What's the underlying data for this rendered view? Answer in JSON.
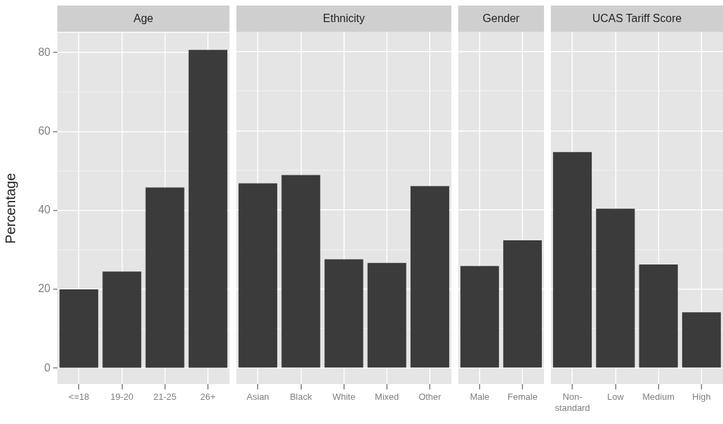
{
  "chart_data": [
    {
      "type": "bar",
      "title": "Age",
      "ylabel": "Percentage",
      "categories": [
        "<=18",
        "19-20",
        "21-25",
        "26+"
      ],
      "values": [
        20.0,
        24.5,
        45.8,
        80.7
      ],
      "color": "#3b3b3b",
      "ylim": [
        -4,
        85
      ],
      "yticks": [
        0,
        {
          "value": 10,
          "label": null
        },
        20,
        {
          "value": 30,
          "label": null
        },
        40,
        {
          "value": 50,
          "label": null
        },
        60,
        {
          "value": 70,
          "label": null
        },
        80
      ],
      "grid": true
    },
    {
      "type": "bar",
      "title": "Ethnicity",
      "categories": [
        "Asian",
        "Black",
        "White",
        "Mixed",
        "Other"
      ],
      "values": [
        46.7,
        48.8,
        27.5,
        26.6,
        46.0
      ],
      "color": "#3b3b3b",
      "ylim": [
        -4,
        85
      ],
      "yticks": [
        0,
        {
          "value": 10,
          "label": null
        },
        20,
        {
          "value": 30,
          "label": null
        },
        40,
        {
          "value": 50,
          "label": null
        },
        60,
        {
          "value": 70,
          "label": null
        },
        80
      ],
      "grid": true,
      "tick_labels": "x"
    },
    {
      "type": "bar",
      "title": "Gender",
      "categories": [
        "Male",
        "Female"
      ],
      "values": [
        25.8,
        32.3
      ],
      "color": "#3b3b3b",
      "ylim": [
        -4,
        85
      ],
      "yticks": [
        0,
        {
          "value": 10,
          "label": null
        },
        20,
        {
          "value": 30,
          "label": null
        },
        40,
        {
          "value": 50,
          "label": null
        },
        60,
        {
          "value": 70,
          "label": null
        },
        80
      ],
      "grid": true,
      "tick_labels": "x"
    },
    {
      "type": "bar",
      "title": "UCAS Tariff Score",
      "categories": [
        "Non-standard",
        "Low",
        "Medium",
        "High"
      ],
      "values": [
        54.6,
        40.3,
        26.2,
        14.1
      ],
      "color": "#3b3b3b",
      "ylim": [
        -4,
        85
      ],
      "yticks": [
        0,
        {
          "value": 10,
          "label": null
        },
        20,
        {
          "value": 30,
          "label": null
        },
        40,
        {
          "value": 50,
          "label": null
        },
        60,
        {
          "value": 70,
          "label": null
        },
        80
      ],
      "grid": true,
      "tick_labels": "x"
    }
  ]
}
